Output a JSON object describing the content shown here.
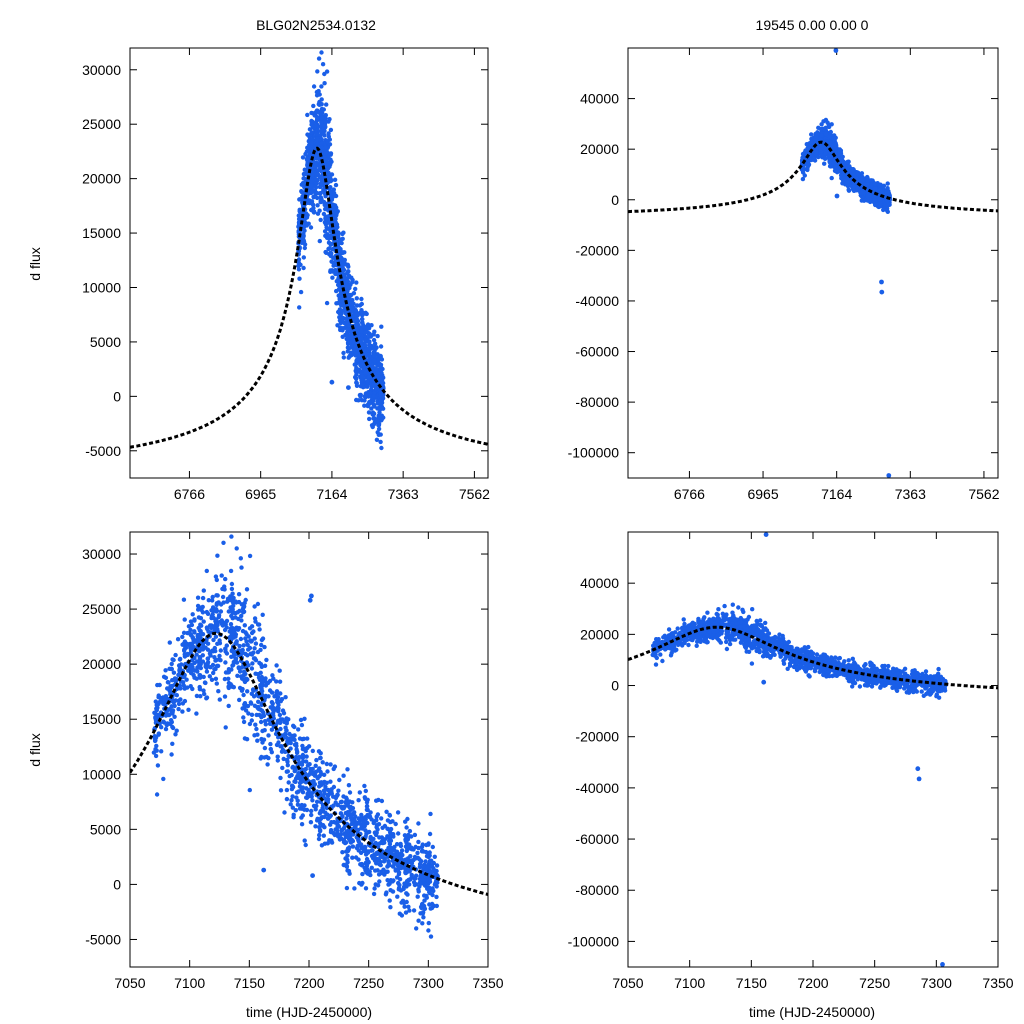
{
  "figure": {
    "title_left": "BLG02N2534.0132",
    "title_right": "19545  0.00  0.00  0",
    "point_color": "#1a5fe8",
    "model_color": "#000000",
    "model_style": "dashed"
  },
  "chart_data": [
    {
      "id": "top-left",
      "type": "scatter",
      "title": "BLG02N2534.0132",
      "xlabel": "",
      "ylabel": "d flux",
      "xlim": [
        6600,
        7600
      ],
      "ylim": [
        -7500,
        32000
      ],
      "xticks": [
        6766,
        6965,
        7164,
        7363,
        7562
      ],
      "yticks": [
        30000,
        25000,
        20000,
        15000,
        10000,
        5000,
        0,
        -5000
      ],
      "model": {
        "t0": 7122,
        "amplitude": 30500,
        "baseline": -7700,
        "width": 52
      },
      "data_points": "dense cluster from 7070 to 7308 following model, scatter peak ~31000",
      "outliers": [
        [
          7164,
          1300
        ],
        [
          7210,
          800
        ]
      ]
    },
    {
      "id": "top-right",
      "type": "scatter",
      "title": "19545  0.00  0.00  0",
      "xlabel": "",
      "ylabel": "",
      "xlim": [
        6600,
        7600
      ],
      "ylim": [
        -110000,
        60000
      ],
      "xticks": [
        6766,
        6965,
        7164,
        7363,
        7562
      ],
      "yticks": [
        40000,
        20000,
        0,
        -20000,
        -40000,
        -60000,
        -80000,
        -100000
      ],
      "model": {
        "t0": 7122,
        "amplitude": 30500,
        "baseline": -7700,
        "width": 52
      },
      "outliers": [
        [
          7162,
          59000
        ],
        [
          7165,
          1500
        ],
        [
          7285,
          -32500
        ],
        [
          7286,
          -36500
        ],
        [
          7305,
          -109000
        ]
      ]
    },
    {
      "id": "bottom-left",
      "type": "scatter",
      "title": "",
      "xlabel": "time (HJD-2450000)",
      "ylabel": "d flux",
      "xlim": [
        7050,
        7350
      ],
      "ylim": [
        -7500,
        32000
      ],
      "xticks": [
        7050,
        7100,
        7150,
        7200,
        7250,
        7300,
        7350
      ],
      "yticks": [
        30000,
        25000,
        20000,
        15000,
        10000,
        5000,
        0,
        -5000
      ],
      "model": {
        "t0": 7122,
        "amplitude": 30500,
        "baseline": -7700,
        "width": 52
      },
      "outliers": [
        [
          7162,
          1300
        ],
        [
          7203,
          800
        ],
        [
          7202,
          26200
        ],
        [
          7201,
          25800
        ]
      ]
    },
    {
      "id": "bottom-right",
      "type": "scatter",
      "title": "",
      "xlabel": "time (HJD-2450000)",
      "ylabel": "",
      "xlim": [
        7050,
        7350
      ],
      "ylim": [
        -110000,
        60000
      ],
      "xticks": [
        7050,
        7100,
        7150,
        7200,
        7250,
        7300,
        7350
      ],
      "yticks": [
        40000,
        20000,
        0,
        -20000,
        -40000,
        -60000,
        -80000,
        -100000
      ],
      "model": {
        "t0": 7122,
        "amplitude": 30500,
        "baseline": -7700,
        "width": 52
      },
      "outliers": [
        [
          7162,
          59000
        ],
        [
          7160,
          1300
        ],
        [
          7285,
          -32500
        ],
        [
          7286,
          -36500
        ],
        [
          7305,
          -109000
        ]
      ]
    }
  ]
}
